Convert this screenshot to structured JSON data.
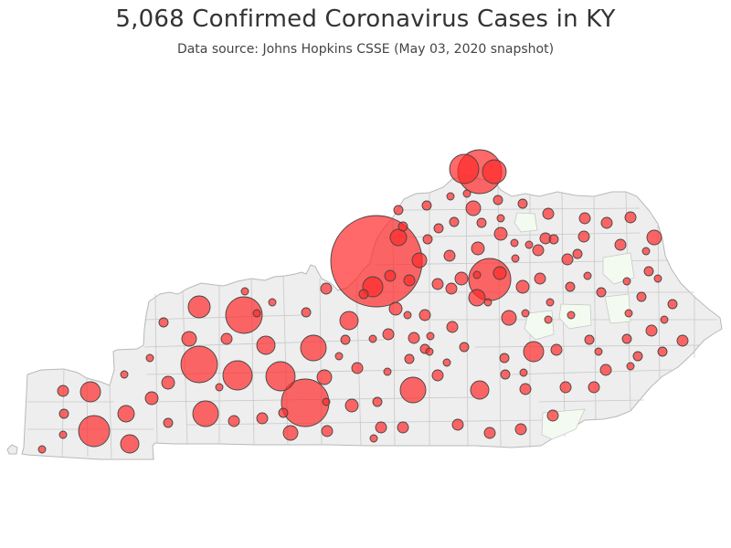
{
  "title": "5,068 Confirmed Coronavirus Cases in KY",
  "subtitle": "Data source: Johns Hopkins CSSE (May 03, 2020 snapshot)",
  "colors": {
    "state_fill": "#eeeeee",
    "county_border": "#c8c8c8",
    "zero_case_fill": "#f3fbf1",
    "bubble_fill": "#ff2a2a",
    "bubble_opacity": 0.7,
    "bubble_border": "#444444"
  },
  "map": {
    "region": "Kentucky",
    "layer": "counties",
    "bubble_meaning": "confirmed cases per county (area proportional)"
  }
}
